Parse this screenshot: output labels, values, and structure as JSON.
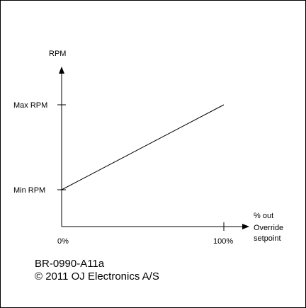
{
  "diagram": {
    "y_axis_label": "RPM",
    "max_label": "Max RPM",
    "min_label": "Min RPM",
    "x_start_label": "0%",
    "x_end_label": "100%",
    "x_axis_label_line1": "% out",
    "x_axis_label_line2": "Override",
    "x_axis_label_line3": "setpoint"
  },
  "chart_data": {
    "type": "line",
    "x": [
      0,
      100
    ],
    "y_labels": [
      "Min RPM",
      "Max RPM"
    ],
    "series": [
      {
        "points": [
          [
            "0%",
            "Min RPM"
          ],
          [
            "100%",
            "Max RPM"
          ]
        ]
      }
    ]
  },
  "footer": {
    "code": "BR-0990-A11a",
    "copyright": "© 2011 OJ Electronics A/S"
  }
}
